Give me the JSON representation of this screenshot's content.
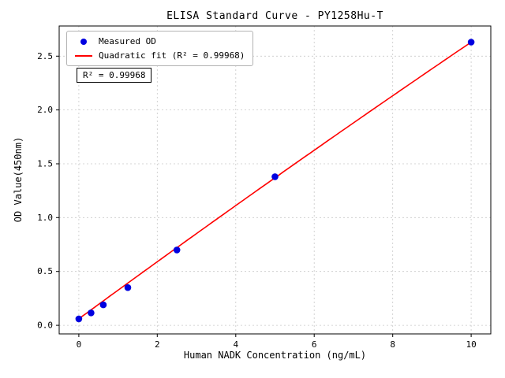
{
  "chart_data": {
    "type": "scatter",
    "title": "ELISA Standard Curve - PY1258Hu-T",
    "xlabel": "Human NADK Concentration (ng/mL)",
    "ylabel": "OD Value(450nm)",
    "xlim": [
      -0.5,
      10.5
    ],
    "ylim": [
      -0.08,
      2.78
    ],
    "xticks": [
      0,
      2,
      4,
      6,
      8,
      10
    ],
    "yticks": [
      0.0,
      0.5,
      1.0,
      1.5,
      2.0,
      2.5
    ],
    "grid": true,
    "colors": {
      "grid": "#c8c8c8",
      "points": "#0000e0",
      "fit": "#ff0000"
    },
    "series": [
      {
        "name": "Measured OD",
        "type": "scatter",
        "color": "#0000e0",
        "x": [
          0,
          0.313,
          0.625,
          1.25,
          2.5,
          5,
          10
        ],
        "y": [
          0.06,
          0.115,
          0.19,
          0.35,
          0.7,
          1.38,
          2.63
        ]
      },
      {
        "name": "Quadratic fit (R² = 0.99968)",
        "type": "line",
        "color": "#ff0000",
        "fit_coeffs": [
          0.06,
          0.267,
          -0.001
        ],
        "x_range": [
          0,
          10
        ]
      }
    ],
    "legend": {
      "position": "upper-left",
      "entries": [
        "Measured OD",
        "Quadratic fit (R² = 0.99968)"
      ]
    },
    "annotation": "R² = 0.99968",
    "r_squared": 0.99968
  }
}
